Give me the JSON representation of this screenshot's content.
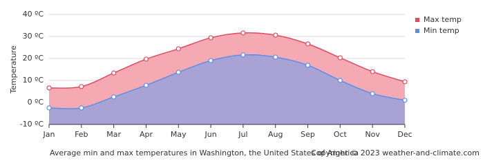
{
  "chart_data": {
    "type": "area-line",
    "y_label": "Temperature",
    "caption": "Average min and max temperatures in Washington, the United States of America",
    "copyright": "Copyright © 2023  weather-and-climate.com",
    "categories": [
      "Jan",
      "Feb",
      "Mar",
      "Apr",
      "May",
      "Jun",
      "Jul",
      "Aug",
      "Sep",
      "Oct",
      "Nov",
      "Dec"
    ],
    "series": [
      {
        "name": "Max temp",
        "color": "#e24a5f",
        "fill": "#f5a9b3",
        "values": [
          6.6,
          7.2,
          13.4,
          19.7,
          24.4,
          29.4,
          31.6,
          30.6,
          26.6,
          20.3,
          14,
          9.4
        ]
      },
      {
        "name": "Min temp",
        "color": "#5a8ee8",
        "fill": "#a9a2d4",
        "values": [
          -2.5,
          -2.5,
          2.5,
          7.8,
          13.7,
          19,
          21.6,
          20.6,
          16.9,
          10,
          4,
          1
        ]
      }
    ],
    "ylim": [
      -10,
      40
    ],
    "yticks": [
      {
        "value": -10,
        "label": "-10 ºC"
      },
      {
        "value": 0,
        "label": "0 ºC"
      },
      {
        "value": 10,
        "label": "10 ºC"
      },
      {
        "value": 20,
        "label": "20 ºC"
      },
      {
        "value": 30,
        "label": "30 ºC"
      },
      {
        "value": 40,
        "label": "40 ºC"
      }
    ],
    "grid": true,
    "legend": "top-right"
  }
}
